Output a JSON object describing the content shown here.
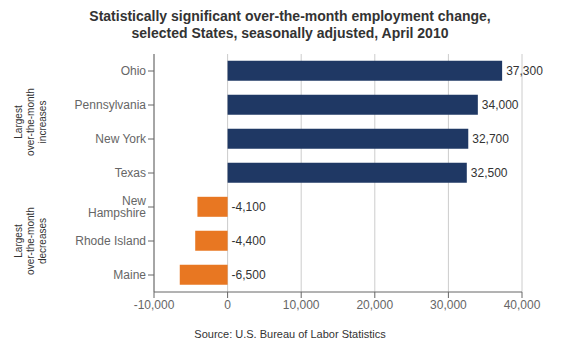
{
  "chart_data": {
    "type": "bar",
    "orientation": "horizontal",
    "title": "Statistically significant over-the-month employment change,\nselected States, seasonally adjusted, April 2010",
    "source": "Source: U.S. Bureau of Labor Statistics",
    "categories": [
      "Ohio",
      "Pennsylvania",
      "New York",
      "Texas",
      "New Hampshire",
      "Rhode Island",
      "Maine"
    ],
    "values": [
      37300,
      34000,
      32700,
      32500,
      -4100,
      -4400,
      -6500
    ],
    "value_labels": [
      "37,300",
      "34,000",
      "32,700",
      "32,500",
      "-4,100",
      "-4,400",
      "-6,500"
    ],
    "colors": [
      "#1F3864",
      "#1F3864",
      "#1F3864",
      "#1F3864",
      "#E87722",
      "#E87722",
      "#E87722"
    ],
    "xlim": [
      -10000,
      40000
    ],
    "xticks": [
      {
        "value": -10000,
        "label": "-10,000"
      },
      0,
      {
        "value": 10000,
        "label": "10,000"
      },
      {
        "value": 20000,
        "label": "20,000"
      },
      {
        "value": 30000,
        "label": "30,000"
      },
      {
        "value": 40000,
        "label": "40,000"
      }
    ],
    "grid": true,
    "data_labels": true,
    "annotations": [
      {
        "text": "Largest\nover-the-month\nincreases",
        "categories": [
          "Ohio",
          "Pennsylvania",
          "New York",
          "Texas"
        ]
      },
      {
        "text": "Largest\nover-the-month\ndecreases",
        "categories": [
          "New Hampshire",
          "Rhode Island",
          "Maine"
        ]
      }
    ]
  }
}
